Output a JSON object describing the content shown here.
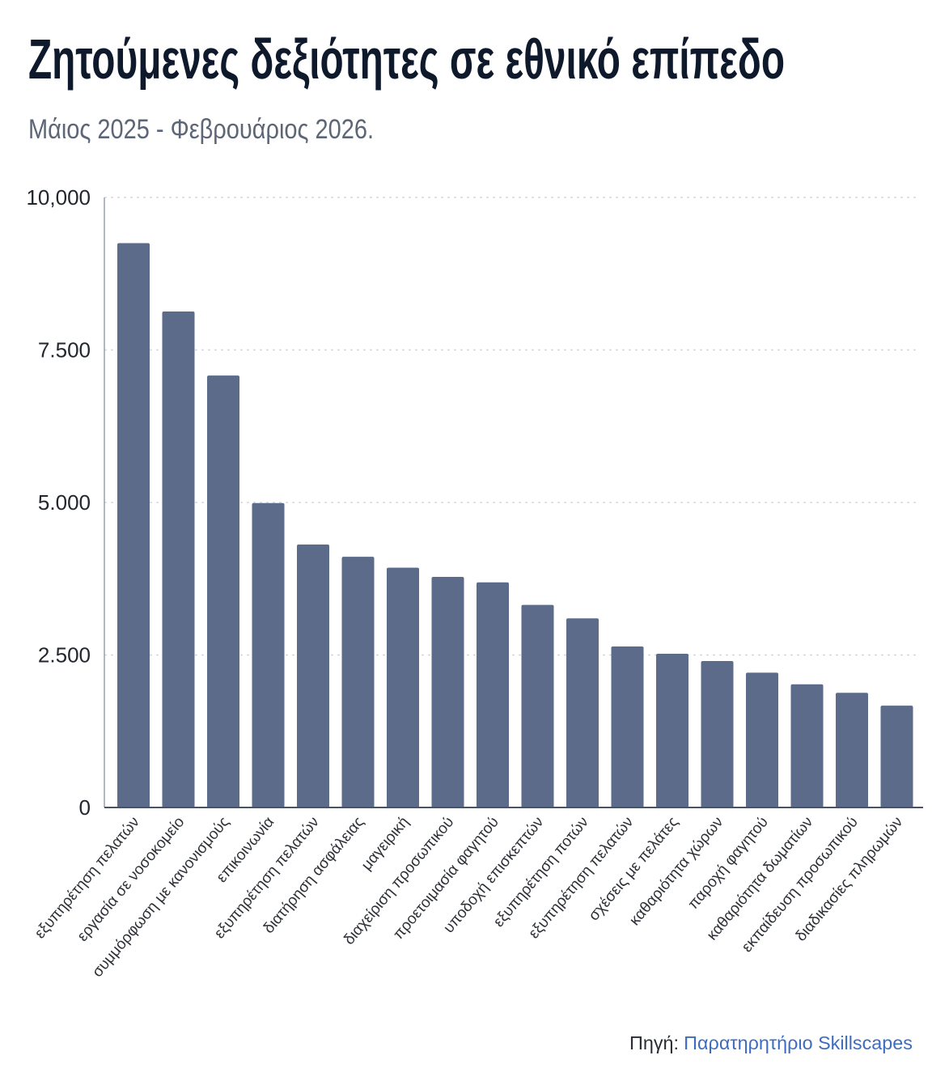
{
  "chart_data": {
    "type": "bar",
    "title": "Ζητούμενες δεξιότητες σε εθνικό επίπεδο",
    "subtitle": "Μάιος 2025 - Φεβρουάριος 2026.",
    "categories": [
      "εξυπηρέτηση πελατών",
      "εργασία σε νοσοκομείο",
      "συμμόρφωση με κανονισμούς",
      "επικοινωνία",
      "εξυπηρέτηση πελατών",
      "διατήρηση ασφάλειας",
      "μαγειρική",
      "διαχείριση προσωπικού",
      "προετοιμασία φαγητού",
      "υποδοχή επισκεπτών",
      "εξυπηρέτηση ποτών",
      "εξυπηρέτηση πελατών",
      "σχέσεις με πελάτες",
      "καθαριότητα χώρων",
      "παροχή φαγητού",
      "καθαριότητα δωματίων",
      "εκπαίδευση προσωπικού",
      "διαδικασίες πληρωμών"
    ],
    "values": [
      9250,
      8130,
      7080,
      4990,
      4310,
      4110,
      3930,
      3780,
      3690,
      3320,
      3100,
      2640,
      2520,
      2400,
      2210,
      2020,
      1880,
      1670
    ],
    "ylim": [
      0,
      10000
    ],
    "yticks": [
      0,
      2500,
      5000,
      7500,
      10000
    ],
    "ytick_labels": [
      "0",
      "2.500",
      "5.000",
      "7.500",
      "10,000"
    ],
    "grid": true,
    "legend": "none"
  },
  "source": {
    "label": "Πηγή:",
    "name": "Παρατηρητήριο Skillscapes"
  },
  "colors": {
    "bar": "#5b6b89",
    "grid": "#d3d7dd",
    "axis": "#4a5363",
    "y_axis": "#9aa0a9",
    "link": "#3d6cc1"
  }
}
